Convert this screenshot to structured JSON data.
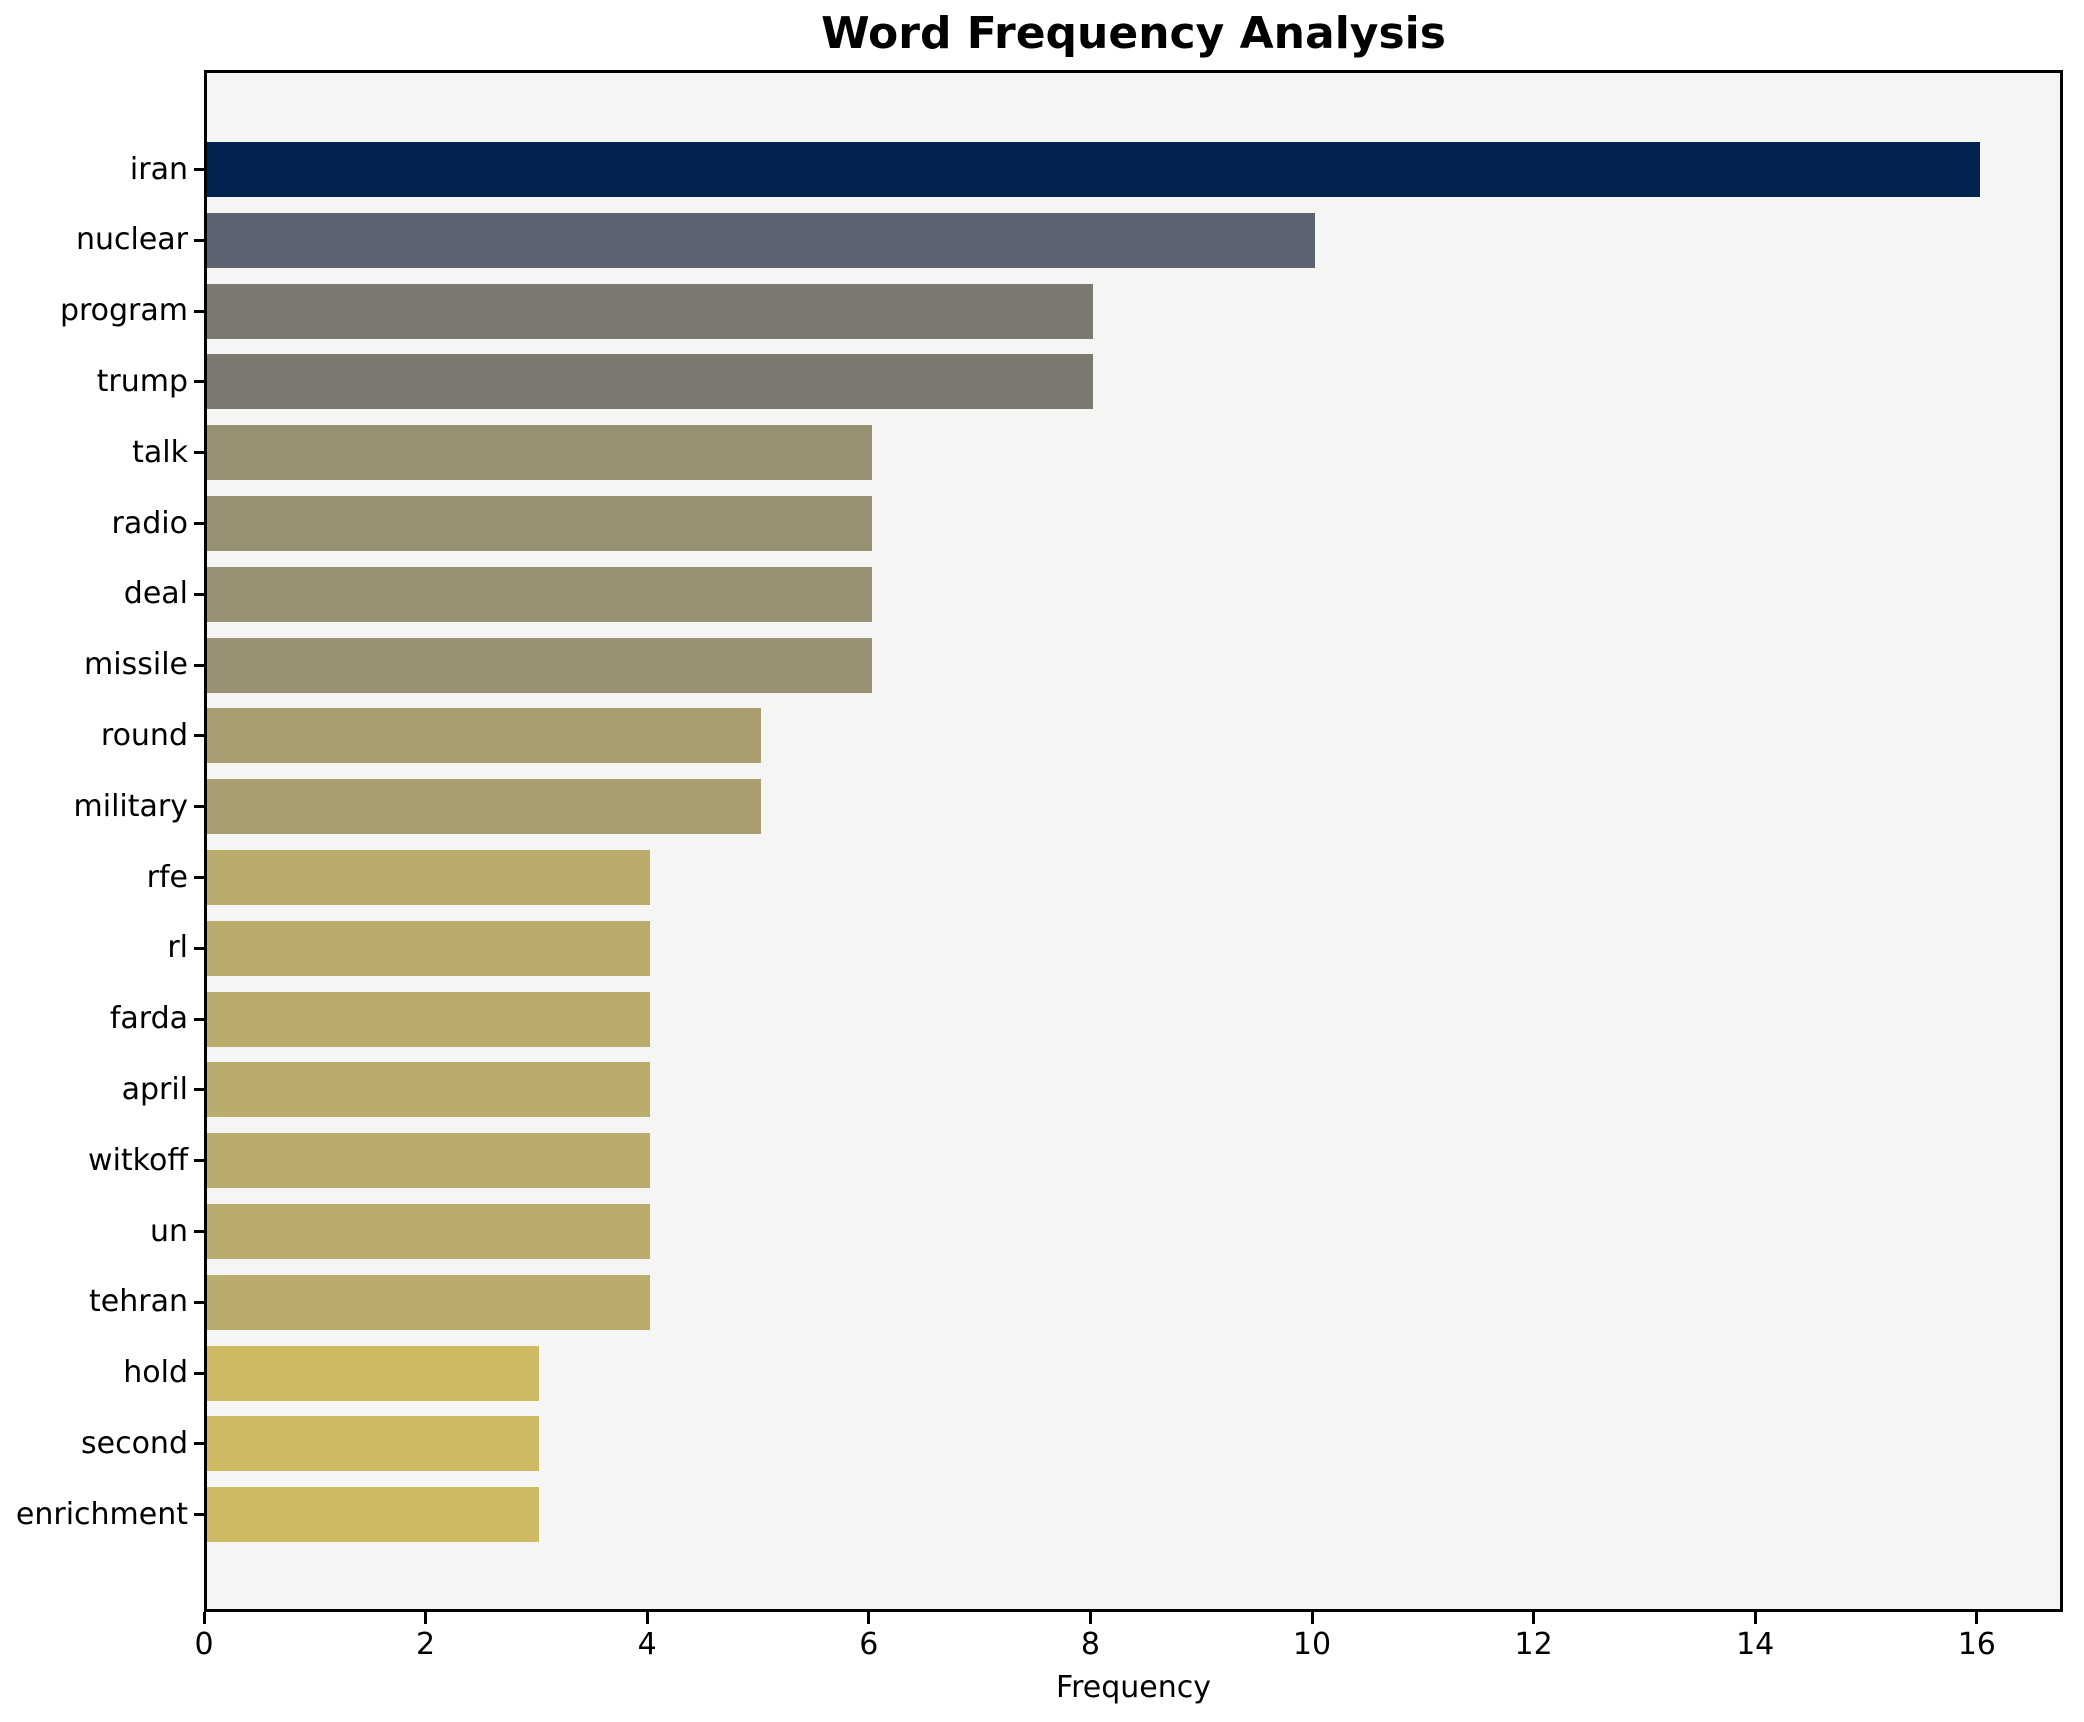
{
  "chart_data": {
    "type": "bar",
    "orientation": "horizontal",
    "title": "Word Frequency Analysis",
    "xlabel": "Frequency",
    "ylabel": "",
    "categories": [
      "iran",
      "nuclear",
      "program",
      "trump",
      "talk",
      "radio",
      "deal",
      "missile",
      "round",
      "military",
      "rfe",
      "rl",
      "farda",
      "april",
      "witkoff",
      "un",
      "tehran",
      "hold",
      "second",
      "enrichment"
    ],
    "values": [
      16,
      10,
      8,
      8,
      6,
      6,
      6,
      6,
      5,
      5,
      4,
      4,
      4,
      4,
      4,
      4,
      4,
      3,
      3,
      3
    ],
    "bar_colors": [
      "#022350",
      "#5d6270",
      "#7b7970",
      "#7b7970",
      "#999173",
      "#999173",
      "#999173",
      "#999173",
      "#a99e6f",
      "#a99e6f",
      "#b8ab6c",
      "#b8ab6c",
      "#b8ab6c",
      "#b8ab6c",
      "#b8ab6c",
      "#b8ab6c",
      "#b8ab6c",
      "#cdba62",
      "#cdba62",
      "#cdba62"
    ],
    "xticks": [
      0,
      2,
      4,
      6,
      8,
      10,
      12,
      14,
      16
    ],
    "xlim": [
      0,
      16.78
    ],
    "grid": false,
    "legend_position": "none",
    "plot_bg": "#f5f5f4",
    "figure_bg": "#ffffff",
    "spine_color": "#000000"
  }
}
